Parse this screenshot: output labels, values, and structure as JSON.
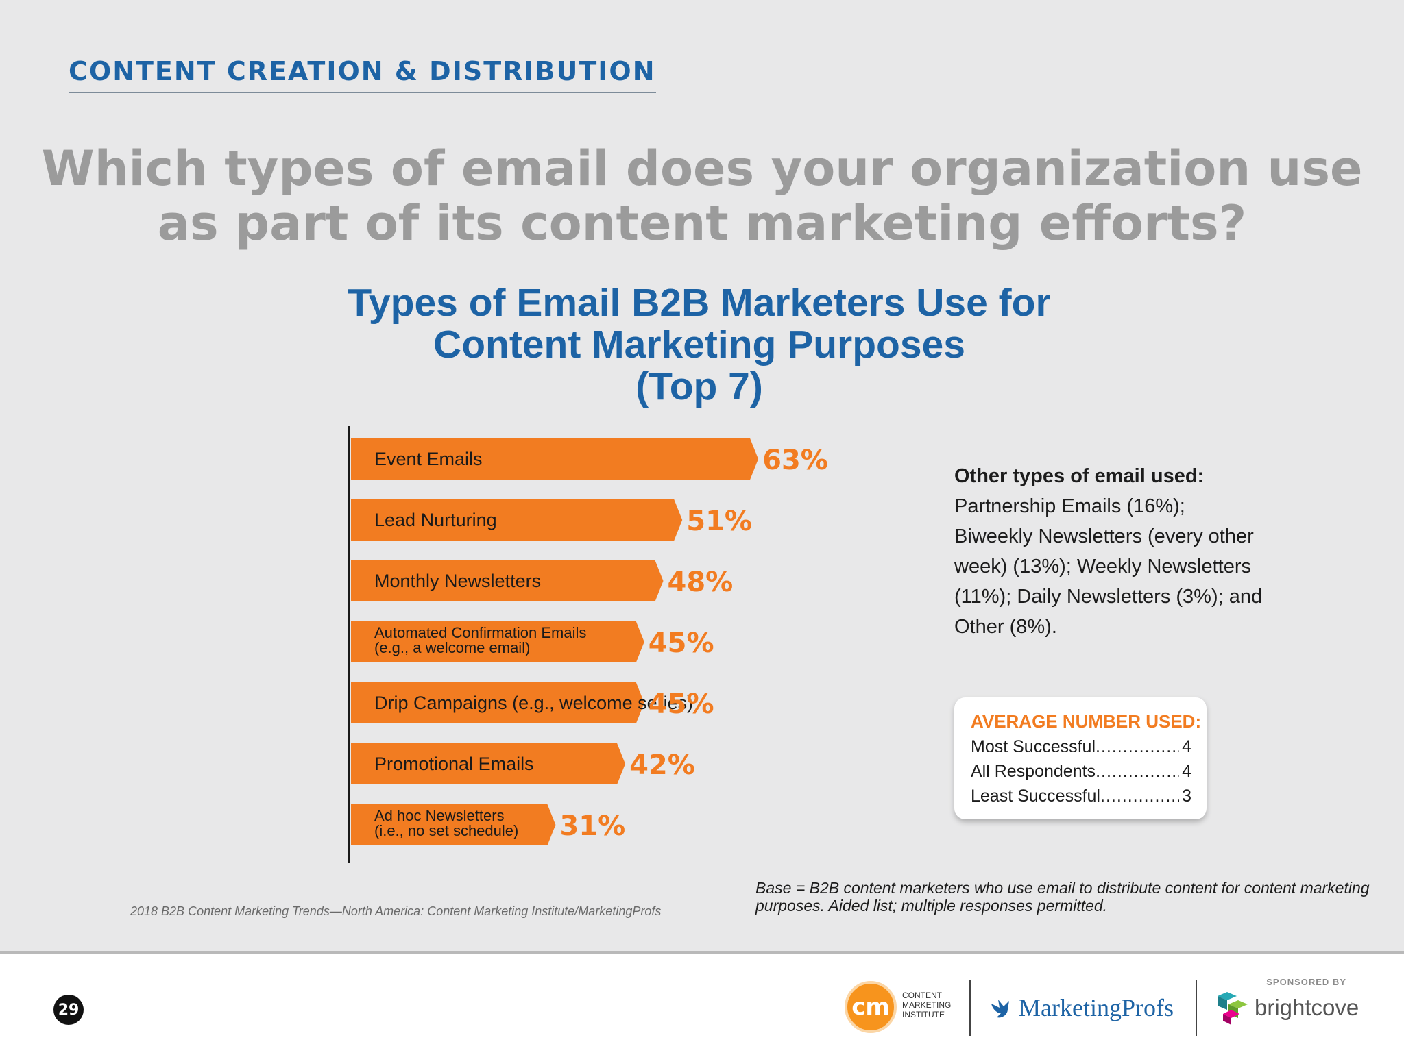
{
  "header": {
    "section_title": "CONTENT CREATION & DISTRIBUTION",
    "question_line1": "Which types of email does your organization use",
    "question_line2": "as part of its content marketing efforts?"
  },
  "chart_data": {
    "type": "bar",
    "orientation": "horizontal",
    "title_lines": [
      "Types of Email B2B Marketers Use for",
      "Content Marketing Purposes",
      "(Top 7)"
    ],
    "categories": [
      [
        "Event Emails"
      ],
      [
        "Lead Nurturing"
      ],
      [
        "Monthly Newsletters"
      ],
      [
        "Automated Confirmation Emails",
        "(e.g., a welcome email)"
      ],
      [
        "Drip Campaigns (e.g., welcome series)"
      ],
      [
        "Promotional Emails"
      ],
      [
        "Ad hoc Newsletters",
        "(i.e., no set schedule)"
      ]
    ],
    "values": [
      63,
      51,
      48,
      45,
      45,
      42,
      31
    ],
    "value_labels": [
      "63%",
      "51%",
      "48%",
      "45%",
      "45%",
      "42%",
      "31%"
    ],
    "unit": "%",
    "grid": false,
    "legend": "none",
    "bar_color": "#f27c21",
    "label_color": "#f27c21",
    "axis_color": "#1a1a1a"
  },
  "other_types": {
    "heading": "Other types of email used:",
    "lines": [
      "Partnership Emails (16%);",
      "Biweekly Newsletters (every other",
      "week) (13%); Weekly Newsletters",
      "(11%); Daily Newsletters (3%); and",
      "Other (8%)."
    ]
  },
  "average_box": {
    "title": "AVERAGE NUMBER USED:",
    "rows": [
      {
        "label": "Most Successful",
        "value": "4"
      },
      {
        "label": "All Respondents",
        "value": "4"
      },
      {
        "label": "Least Successful",
        "value": "3"
      }
    ]
  },
  "notes": {
    "base_line1": "Base = B2B content marketers who use email to distribute content for content marketing",
    "base_line2": "purposes. Aided list; multiple responses permitted.",
    "source": "2018 B2B Content Marketing Trends—North America: Content Marketing Institute/MarketingProfs"
  },
  "footer": {
    "page_number": "29",
    "cmi_monogram": "cm",
    "cmi_text": "CONTENT\nMARKETING\nINSTITUTE",
    "cmi_trademark": "®",
    "mp_name": "MarketingProfs",
    "sponsored_by": "SPONSORED BY",
    "brightcove_name": "brightcove",
    "brightcove_trademark": "®"
  },
  "colors": {
    "accent_blue": "#1d63a5",
    "accent_orange": "#f27c21",
    "question_gray": "#9b9b9b",
    "background": "#e8e8e9"
  }
}
